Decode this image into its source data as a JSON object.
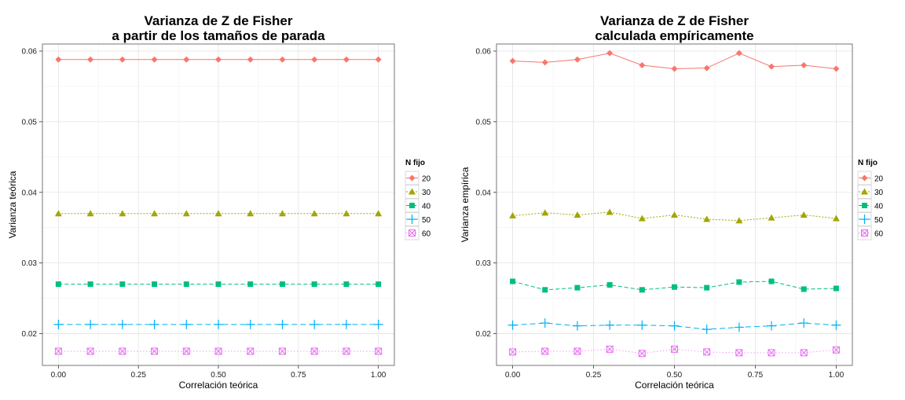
{
  "chart_data": [
    {
      "type": "line",
      "title_lines": [
        "Varianza de Z de Fisher",
        "a partir de los tamaños de parada"
      ],
      "xlabel": "Correlación teórica",
      "ylabel": "Varianza teórica",
      "xlim": [
        -0.05,
        1.05
      ],
      "ylim": [
        0.0155,
        0.061
      ],
      "xticks": [
        0,
        0.25,
        0.5,
        0.75,
        1
      ],
      "xtick_labels": [
        "0.00",
        "0.25",
        "0.50",
        "0.75",
        "1.00"
      ],
      "yticks": [
        0.02,
        0.03,
        0.04,
        0.05,
        0.06
      ],
      "ytick_labels": [
        "0.02",
        "0.03",
        "0.04",
        "0.05",
        "0.06"
      ],
      "grid": true,
      "legend_title": "N fijo",
      "legend_position": "right",
      "x": [
        0,
        0.1,
        0.2,
        0.3,
        0.4,
        0.5,
        0.6,
        0.7,
        0.8,
        0.9,
        1.0
      ],
      "series": [
        {
          "name": "20",
          "color": "#F8766D",
          "marker": "diamond",
          "dash": "solid",
          "values": [
            0.0588,
            0.0588,
            0.0588,
            0.0588,
            0.0588,
            0.0588,
            0.0588,
            0.0588,
            0.0588,
            0.0588,
            0.0588
          ]
        },
        {
          "name": "30",
          "color": "#A3A500",
          "marker": "triangle",
          "dash": "dotted-short",
          "values": [
            0.037,
            0.037,
            0.037,
            0.037,
            0.037,
            0.037,
            0.037,
            0.037,
            0.037,
            0.037,
            0.037
          ]
        },
        {
          "name": "40",
          "color": "#00BF7D",
          "marker": "square",
          "dash": "dashed",
          "values": [
            0.027,
            0.027,
            0.027,
            0.027,
            0.027,
            0.027,
            0.027,
            0.027,
            0.027,
            0.027,
            0.027
          ]
        },
        {
          "name": "50",
          "color": "#00B0F6",
          "marker": "plus",
          "dash": "longdash",
          "values": [
            0.0213,
            0.0213,
            0.0213,
            0.0213,
            0.0213,
            0.0213,
            0.0213,
            0.0213,
            0.0213,
            0.0213,
            0.0213
          ]
        },
        {
          "name": "60",
          "color": "#E76BF3",
          "marker": "boxcross",
          "dash": "dotted",
          "values": [
            0.0175,
            0.0175,
            0.0175,
            0.0175,
            0.0175,
            0.0175,
            0.0175,
            0.0175,
            0.0175,
            0.0175,
            0.0175
          ]
        }
      ]
    },
    {
      "type": "line",
      "title_lines": [
        "Varianza de Z de Fisher",
        "calculada empíricamente"
      ],
      "xlabel": "Correlación teórica",
      "ylabel": "Varianza empírica",
      "xlim": [
        -0.05,
        1.05
      ],
      "ylim": [
        0.0155,
        0.061
      ],
      "xticks": [
        0,
        0.25,
        0.5,
        0.75,
        1
      ],
      "xtick_labels": [
        "0.00",
        "0.25",
        "0.50",
        "0.75",
        "1.00"
      ],
      "yticks": [
        0.02,
        0.03,
        0.04,
        0.05,
        0.06
      ],
      "ytick_labels": [
        "0.02",
        "0.03",
        "0.04",
        "0.05",
        "0.06"
      ],
      "grid": true,
      "legend_title": "N fijo",
      "legend_position": "right",
      "x": [
        0,
        0.1,
        0.2,
        0.3,
        0.4,
        0.5,
        0.6,
        0.7,
        0.8,
        0.9,
        1.0
      ],
      "series": [
        {
          "name": "20",
          "color": "#F8766D",
          "marker": "diamond",
          "dash": "solid",
          "values": [
            0.0586,
            0.0584,
            0.0588,
            0.0597,
            0.058,
            0.0575,
            0.0576,
            0.0597,
            0.0578,
            0.058,
            0.0575
          ]
        },
        {
          "name": "30",
          "color": "#A3A500",
          "marker": "triangle",
          "dash": "dotted-short",
          "values": [
            0.0367,
            0.0371,
            0.0368,
            0.0372,
            0.0363,
            0.0368,
            0.0362,
            0.036,
            0.0364,
            0.0368,
            0.0363
          ]
        },
        {
          "name": "40",
          "color": "#00BF7D",
          "marker": "square",
          "dash": "dashed",
          "values": [
            0.0274,
            0.0262,
            0.0265,
            0.0269,
            0.0262,
            0.0266,
            0.0265,
            0.0273,
            0.0274,
            0.0263,
            0.0264
          ]
        },
        {
          "name": "50",
          "color": "#00B0F6",
          "marker": "plus",
          "dash": "longdash",
          "values": [
            0.0212,
            0.0215,
            0.0211,
            0.0212,
            0.0212,
            0.0211,
            0.0206,
            0.0209,
            0.0211,
            0.0215,
            0.0212
          ]
        },
        {
          "name": "60",
          "color": "#E76BF3",
          "marker": "boxcross",
          "dash": "dotted",
          "values": [
            0.0174,
            0.0175,
            0.0175,
            0.0178,
            0.0172,
            0.0178,
            0.0174,
            0.0173,
            0.0173,
            0.0173,
            0.0177
          ]
        }
      ]
    }
  ]
}
